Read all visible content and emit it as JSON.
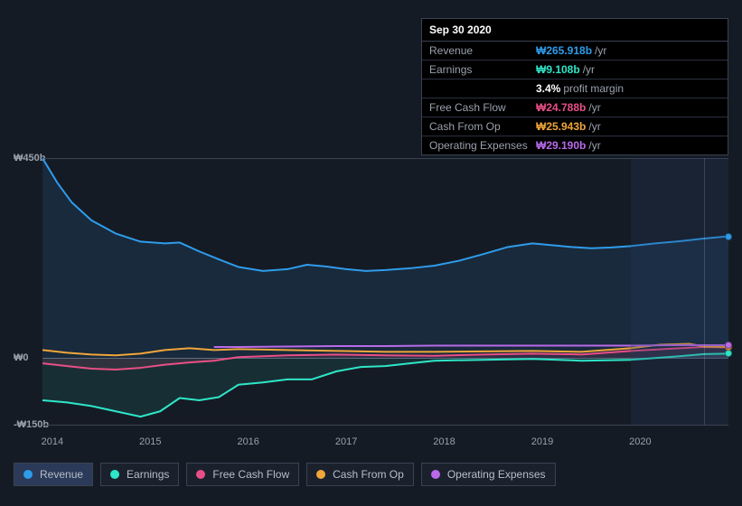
{
  "tooltip": {
    "date": "Sep 30 2020",
    "rows": [
      {
        "label": "Revenue",
        "value": "₩265.918b",
        "suffix": "/yr",
        "color": "#2f9ceb"
      },
      {
        "label": "Earnings",
        "value": "₩9.108b",
        "suffix": "/yr",
        "color": "#2ee6c8"
      },
      {
        "label": "",
        "value": "3.4%",
        "suffix": "profit margin",
        "color": "#ffffff"
      },
      {
        "label": "Free Cash Flow",
        "value": "₩24.788b",
        "suffix": "/yr",
        "color": "#e94f86"
      },
      {
        "label": "Cash From Op",
        "value": "₩25.943b",
        "suffix": "/yr",
        "color": "#f0a63a"
      },
      {
        "label": "Operating Expenses",
        "value": "₩29.190b",
        "suffix": "/yr",
        "color": "#b96ae8"
      }
    ]
  },
  "chart": {
    "type": "line",
    "background_color": "#151b24",
    "grid_color": "#3a4252",
    "ylim": [
      -150,
      450
    ],
    "yticks": [
      {
        "val": 450,
        "label": "₩450b"
      },
      {
        "val": 0,
        "label": "₩0"
      },
      {
        "val": -150,
        "label": "-₩150b"
      }
    ],
    "xlim": [
      2014,
      2021
    ],
    "xticks": [
      2014,
      2015,
      2016,
      2017,
      2018,
      2019,
      2020
    ],
    "hover_x": 2020.75,
    "future_from": 2020.0,
    "line_width": 2,
    "series": [
      {
        "name": "Revenue",
        "color": "#2f9ceb",
        "fill": "rgba(47,156,235,0.12)",
        "fill_to": 0,
        "points": [
          [
            2014.0,
            450
          ],
          [
            2014.15,
            395
          ],
          [
            2014.3,
            350
          ],
          [
            2014.5,
            310
          ],
          [
            2014.75,
            280
          ],
          [
            2015.0,
            262
          ],
          [
            2015.25,
            258
          ],
          [
            2015.4,
            260
          ],
          [
            2015.6,
            240
          ],
          [
            2015.8,
            222
          ],
          [
            2016.0,
            205
          ],
          [
            2016.25,
            196
          ],
          [
            2016.5,
            200
          ],
          [
            2016.7,
            210
          ],
          [
            2016.9,
            206
          ],
          [
            2017.1,
            200
          ],
          [
            2017.3,
            196
          ],
          [
            2017.5,
            198
          ],
          [
            2017.75,
            202
          ],
          [
            2018.0,
            208
          ],
          [
            2018.25,
            219
          ],
          [
            2018.5,
            234
          ],
          [
            2018.75,
            250
          ],
          [
            2019.0,
            258
          ],
          [
            2019.2,
            254
          ],
          [
            2019.4,
            250
          ],
          [
            2019.6,
            247
          ],
          [
            2019.8,
            249
          ],
          [
            2020.0,
            252
          ],
          [
            2020.25,
            258
          ],
          [
            2020.5,
            263
          ],
          [
            2020.75,
            269
          ],
          [
            2021.0,
            274
          ]
        ]
      },
      {
        "name": "Earnings",
        "color": "#2ee6c8",
        "fill": "rgba(46,230,200,0.10)",
        "fill_to": 0,
        "points": [
          [
            2014.0,
            -95
          ],
          [
            2014.25,
            -100
          ],
          [
            2014.5,
            -108
          ],
          [
            2014.75,
            -120
          ],
          [
            2015.0,
            -132
          ],
          [
            2015.2,
            -120
          ],
          [
            2015.4,
            -90
          ],
          [
            2015.6,
            -95
          ],
          [
            2015.8,
            -88
          ],
          [
            2016.0,
            -60
          ],
          [
            2016.25,
            -55
          ],
          [
            2016.5,
            -48
          ],
          [
            2016.75,
            -48
          ],
          [
            2017.0,
            -30
          ],
          [
            2017.25,
            -20
          ],
          [
            2017.5,
            -18
          ],
          [
            2017.75,
            -12
          ],
          [
            2018.0,
            -6
          ],
          [
            2018.5,
            -4
          ],
          [
            2019.0,
            -2
          ],
          [
            2019.5,
            -6
          ],
          [
            2020.0,
            -4
          ],
          [
            2020.5,
            4
          ],
          [
            2020.75,
            9
          ],
          [
            2021.0,
            10
          ]
        ]
      },
      {
        "name": "Free Cash Flow",
        "color": "#e94f86",
        "fill": "rgba(233,79,134,0.12)",
        "fill_to": 0,
        "points": [
          [
            2014.0,
            -12
          ],
          [
            2014.25,
            -18
          ],
          [
            2014.5,
            -24
          ],
          [
            2014.75,
            -26
          ],
          [
            2015.0,
            -22
          ],
          [
            2015.25,
            -15
          ],
          [
            2015.5,
            -10
          ],
          [
            2015.75,
            -6
          ],
          [
            2016.0,
            2
          ],
          [
            2016.5,
            6
          ],
          [
            2017.0,
            8
          ],
          [
            2017.5,
            6
          ],
          [
            2018.0,
            5
          ],
          [
            2018.5,
            8
          ],
          [
            2019.0,
            10
          ],
          [
            2019.5,
            8
          ],
          [
            2020.0,
            16
          ],
          [
            2020.5,
            22
          ],
          [
            2020.75,
            25
          ],
          [
            2021.0,
            24
          ]
        ]
      },
      {
        "name": "Cash From Op",
        "color": "#f0a63a",
        "fill": null,
        "points": [
          [
            2014.0,
            18
          ],
          [
            2014.25,
            12
          ],
          [
            2014.5,
            8
          ],
          [
            2014.75,
            6
          ],
          [
            2015.0,
            10
          ],
          [
            2015.25,
            18
          ],
          [
            2015.5,
            22
          ],
          [
            2015.75,
            18
          ],
          [
            2016.0,
            20
          ],
          [
            2016.5,
            18
          ],
          [
            2017.0,
            16
          ],
          [
            2017.5,
            14
          ],
          [
            2018.0,
            14
          ],
          [
            2018.5,
            15
          ],
          [
            2019.0,
            16
          ],
          [
            2019.5,
            14
          ],
          [
            2020.0,
            22
          ],
          [
            2020.3,
            30
          ],
          [
            2020.6,
            32
          ],
          [
            2020.75,
            26
          ],
          [
            2021.0,
            25
          ]
        ]
      },
      {
        "name": "Operating Expenses",
        "color": "#b96ae8",
        "fill": null,
        "points": [
          [
            2015.75,
            25
          ],
          [
            2016.0,
            25
          ],
          [
            2016.5,
            26
          ],
          [
            2017.0,
            27
          ],
          [
            2017.5,
            27
          ],
          [
            2018.0,
            28
          ],
          [
            2018.5,
            28
          ],
          [
            2019.0,
            28
          ],
          [
            2019.5,
            28
          ],
          [
            2020.0,
            28
          ],
          [
            2020.5,
            29
          ],
          [
            2020.75,
            29
          ],
          [
            2021.0,
            29
          ]
        ]
      }
    ]
  },
  "legend": {
    "items": [
      {
        "label": "Revenue",
        "color": "#2f9ceb",
        "active": true
      },
      {
        "label": "Earnings",
        "color": "#2ee6c8",
        "active": false
      },
      {
        "label": "Free Cash Flow",
        "color": "#e94f86",
        "active": false
      },
      {
        "label": "Cash From Op",
        "color": "#f0a63a",
        "active": false
      },
      {
        "label": "Operating Expenses",
        "color": "#b96ae8",
        "active": false
      }
    ]
  }
}
